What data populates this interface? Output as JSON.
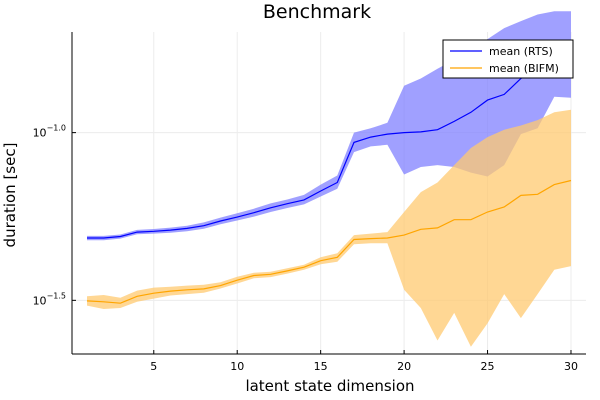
{
  "chart_data": {
    "type": "line",
    "title": "Benchmark",
    "xlabel": "latent state dimension",
    "ylabel": "duration [sec]",
    "y_scale": "log10",
    "xlim": [
      0.1,
      30.9
    ],
    "ylim_log10": [
      -1.66,
      -0.7
    ],
    "x_ticks": [
      5,
      10,
      15,
      20,
      25,
      30
    ],
    "x_tick_labels": [
      "5",
      "10",
      "15",
      "20",
      "25",
      "30"
    ],
    "y_ticks_log10": [
      -1.5,
      -1.0
    ],
    "y_tick_labels": [
      {
        "base": "10",
        "exp": "−1.5"
      },
      {
        "base": "10",
        "exp": "−1.0"
      }
    ],
    "grid": true,
    "legend_position": "top-right",
    "x": [
      1,
      2,
      3,
      4,
      5,
      6,
      7,
      8,
      9,
      10,
      11,
      12,
      13,
      14,
      15,
      16,
      17,
      18,
      19,
      20,
      21,
      22,
      23,
      24,
      25,
      26,
      27,
      28,
      29,
      30
    ],
    "series": [
      {
        "name": "mean (RTS)",
        "color": "#0000ff",
        "band_color": "#8080ff",
        "mean": [
          0.0485,
          0.0485,
          0.049,
          0.0505,
          0.0508,
          0.0512,
          0.0518,
          0.0528,
          0.0545,
          0.056,
          0.0577,
          0.0597,
          0.0614,
          0.063,
          0.067,
          0.071,
          0.0935,
          0.097,
          0.099,
          0.1,
          0.1005,
          0.102,
          0.108,
          0.115,
          0.125,
          0.13,
          0.145,
          0.157,
          0.168,
          0.179
        ],
        "lower": [
          0.0478,
          0.0478,
          0.0483,
          0.0498,
          0.05,
          0.0503,
          0.0508,
          0.0517,
          0.0533,
          0.0547,
          0.0562,
          0.058,
          0.0596,
          0.0611,
          0.0645,
          0.068,
          0.0875,
          0.091,
          0.092,
          0.075,
          0.079,
          0.08,
          0.079,
          0.076,
          0.074,
          0.08,
          0.099,
          0.103,
          0.128,
          0.127
        ],
        "upper": [
          0.0492,
          0.0492,
          0.0497,
          0.0513,
          0.0516,
          0.0521,
          0.0528,
          0.054,
          0.0558,
          0.0575,
          0.0593,
          0.0615,
          0.0632,
          0.0652,
          0.07,
          0.0745,
          0.1,
          0.103,
          0.107,
          0.138,
          0.145,
          0.155,
          0.165,
          0.178,
          0.19,
          0.205,
          0.215,
          0.225,
          0.23,
          0.23
        ]
      },
      {
        "name": "mean (BIFM)",
        "color": "#ffa500",
        "band_color": "#ffca70",
        "mean": [
          0.0315,
          0.0313,
          0.031,
          0.0325,
          0.0332,
          0.0337,
          0.034,
          0.0342,
          0.035,
          0.0363,
          0.0375,
          0.0378,
          0.0387,
          0.0397,
          0.0415,
          0.0425,
          0.048,
          0.0483,
          0.0485,
          0.0495,
          0.0515,
          0.052,
          0.055,
          0.055,
          0.058,
          0.06,
          0.065,
          0.0655,
          0.07,
          0.072
        ],
        "lower": [
          0.0305,
          0.0298,
          0.03,
          0.0313,
          0.032,
          0.0327,
          0.033,
          0.0333,
          0.0343,
          0.0355,
          0.0368,
          0.0371,
          0.038,
          0.039,
          0.0405,
          0.0412,
          0.0465,
          0.0468,
          0.0468,
          0.034,
          0.03,
          0.024,
          0.029,
          0.023,
          0.027,
          0.033,
          0.028,
          0.033,
          0.039,
          0.04
        ],
        "upper": [
          0.0325,
          0.0328,
          0.0322,
          0.0338,
          0.0345,
          0.0347,
          0.035,
          0.0352,
          0.0358,
          0.0372,
          0.0382,
          0.0385,
          0.0394,
          0.0404,
          0.0425,
          0.0437,
          0.0495,
          0.05,
          0.0505,
          0.058,
          0.0665,
          0.071,
          0.08,
          0.09,
          0.097,
          0.102,
          0.105,
          0.109,
          0.115,
          0.117
        ]
      }
    ]
  }
}
